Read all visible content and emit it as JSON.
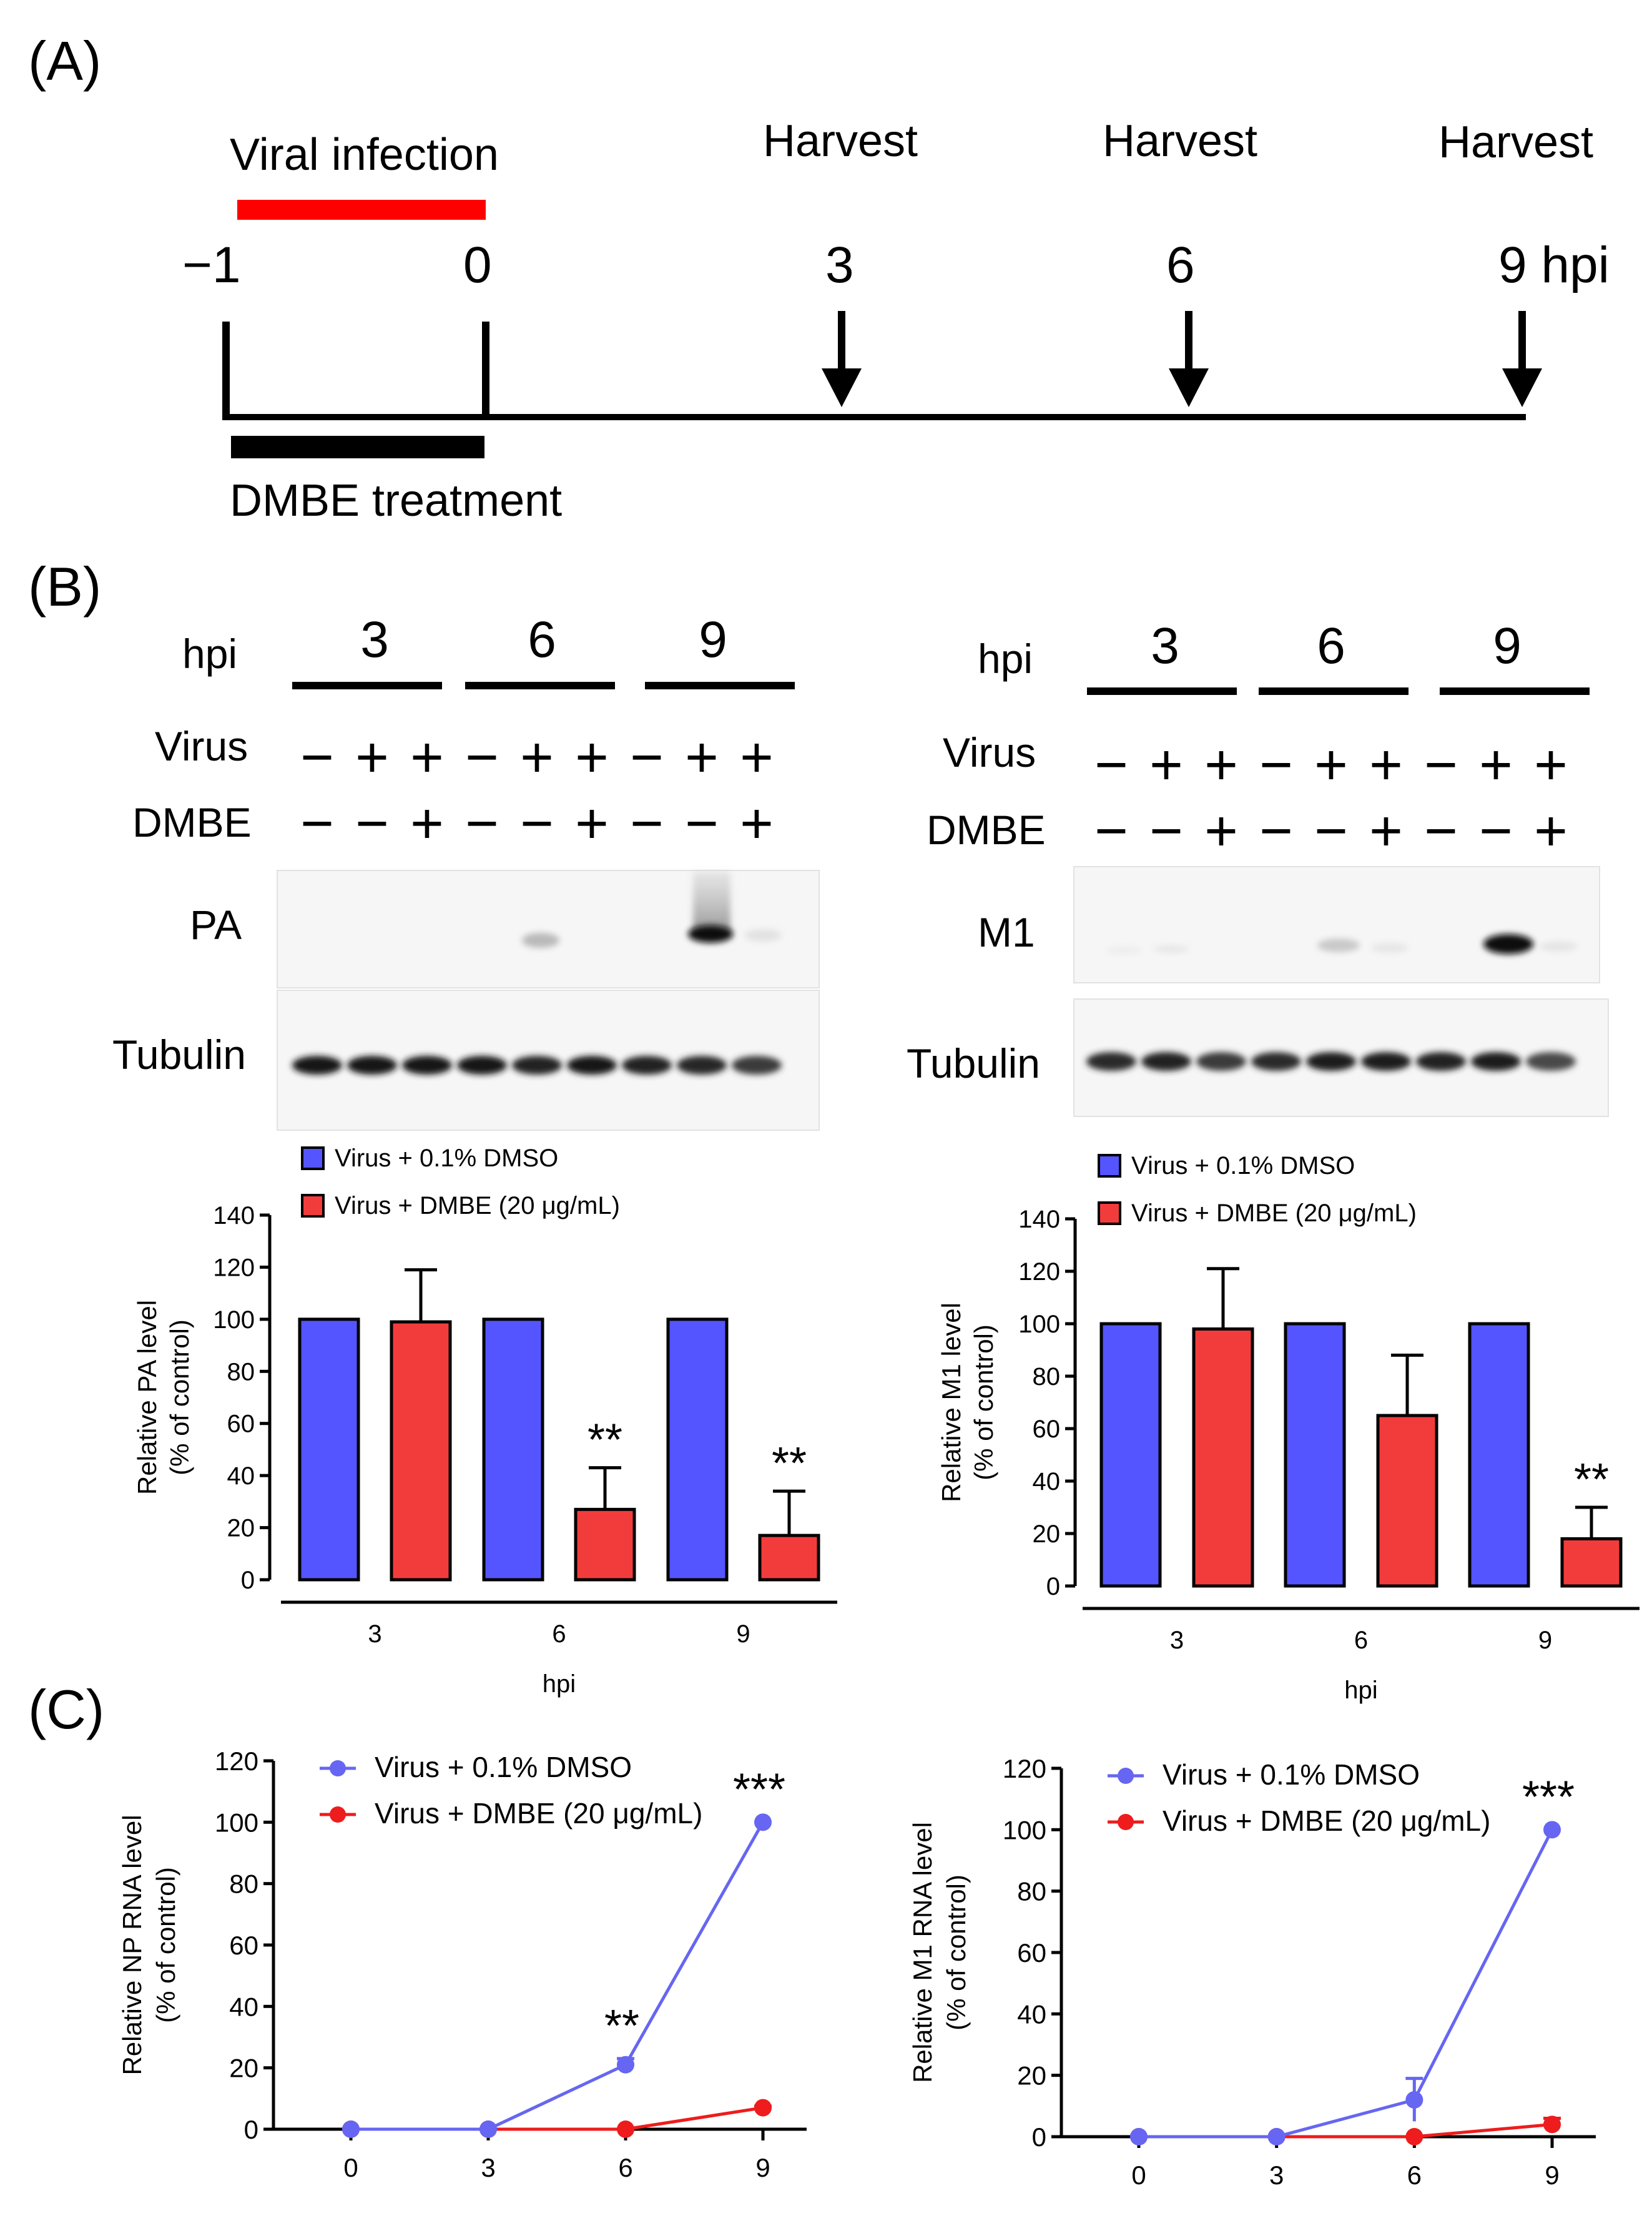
{
  "panels": {
    "A": "(A)",
    "B": "(B)",
    "C": "(C)"
  },
  "timeline": {
    "viral_infection": "Viral infection",
    "harvest": [
      "Harvest",
      "Harvest",
      "Harvest"
    ],
    "points": [
      "−1",
      "0",
      "3",
      "6",
      "9 hpi"
    ],
    "treatment": "DMBE treatment",
    "colors": {
      "infection_bar": "#ff0000",
      "treatment_bar": "#000000"
    }
  },
  "blots": {
    "left": {
      "hpi_label": "hpi",
      "groups": [
        "3",
        "6",
        "9"
      ],
      "row_labels": [
        "Virus",
        "DMBE"
      ],
      "virus": [
        "−",
        "+",
        "+",
        "−",
        "+",
        "+",
        "−",
        "+",
        "+"
      ],
      "dmbe": [
        "−",
        "−",
        "+",
        "−",
        "−",
        "+",
        "−",
        "−",
        "+"
      ],
      "target": "PA",
      "loading": "Tubulin"
    },
    "right": {
      "hpi_label": "hpi",
      "groups": [
        "3",
        "6",
        "9"
      ],
      "row_labels": [
        "Virus",
        "DMBE"
      ],
      "virus": [
        "−",
        "+",
        "+",
        "−",
        "+",
        "+",
        "−",
        "+",
        "+"
      ],
      "dmbe": [
        "−",
        "−",
        "+",
        "−",
        "−",
        "+",
        "−",
        "−",
        "+"
      ],
      "target": "M1",
      "loading": "Tubulin"
    }
  },
  "chart_data": [
    {
      "id": "b_left",
      "type": "bar",
      "title": "",
      "categories": [
        "3",
        "6",
        "9"
      ],
      "xlabel": "hpi",
      "ylabel": "Relative PA level",
      "ylabel2": "(% of control)",
      "ylim": [
        0,
        140
      ],
      "yticks": [
        0,
        20,
        40,
        60,
        80,
        100,
        120,
        140
      ],
      "series": [
        {
          "name": "Virus + 0.1% DMSO",
          "values": [
            100,
            100,
            100
          ],
          "errors": [
            0,
            0,
            0
          ],
          "color": "#5555ff"
        },
        {
          "name": "Virus + DMBE (20 μg/mL)",
          "values": [
            99,
            27,
            17
          ],
          "errors": [
            20,
            16,
            17
          ],
          "color": "#f23c3c"
        }
      ],
      "significance": [
        "",
        "**",
        "**"
      ]
    },
    {
      "id": "b_right",
      "type": "bar",
      "title": "",
      "categories": [
        "3",
        "6",
        "9"
      ],
      "xlabel": "hpi",
      "ylabel": "Relative M1 level",
      "ylabel2": "(% of control)",
      "ylim": [
        0,
        140
      ],
      "yticks": [
        0,
        20,
        40,
        60,
        80,
        100,
        120,
        140
      ],
      "series": [
        {
          "name": "Virus + 0.1% DMSO",
          "values": [
            100,
            100,
            100
          ],
          "errors": [
            0,
            0,
            0
          ],
          "color": "#5555ff"
        },
        {
          "name": "Virus + DMBE (20 μg/mL)",
          "values": [
            98,
            65,
            18
          ],
          "errors": [
            23,
            23,
            12
          ],
          "color": "#f23c3c"
        }
      ],
      "significance": [
        "",
        "",
        "**"
      ]
    },
    {
      "id": "c_left",
      "type": "line",
      "title": "",
      "x": [
        0,
        3,
        6,
        9
      ],
      "xlabel": "",
      "ylabel": "Relative NP RNA level",
      "ylabel2": "(% of control)",
      "ylim": [
        0,
        120
      ],
      "yticks": [
        0,
        20,
        40,
        60,
        80,
        100,
        120
      ],
      "series": [
        {
          "name": "Virus + 0.1% DMSO",
          "values": [
            0,
            0,
            21,
            100
          ],
          "errors": [
            0,
            0,
            2,
            0
          ],
          "color": "#6666f2"
        },
        {
          "name": "Virus + DMBE (20 μg/mL)",
          "values": [
            0,
            0,
            0,
            7
          ],
          "errors": [
            0,
            0,
            0,
            0.5
          ],
          "color": "#ee1c1c"
        }
      ],
      "significance": [
        "",
        "",
        "**",
        "***"
      ]
    },
    {
      "id": "c_right",
      "type": "line",
      "title": "",
      "x": [
        0,
        3,
        6,
        9
      ],
      "xlabel": "",
      "ylabel": "Relative M1 RNA level",
      "ylabel2": "(% of control)",
      "ylim": [
        0,
        120
      ],
      "yticks": [
        0,
        20,
        40,
        60,
        80,
        100,
        120
      ],
      "series": [
        {
          "name": "Virus + 0.1% DMSO",
          "values": [
            0,
            0,
            12,
            100
          ],
          "errors": [
            0,
            0,
            7,
            0
          ],
          "color": "#6666f2"
        },
        {
          "name": "Virus + DMBE (20 μg/mL)",
          "values": [
            0,
            0,
            0,
            4
          ],
          "errors": [
            0,
            0,
            0,
            2
          ],
          "color": "#ee1c1c"
        }
      ],
      "significance": [
        "",
        "",
        "",
        "***"
      ]
    }
  ]
}
